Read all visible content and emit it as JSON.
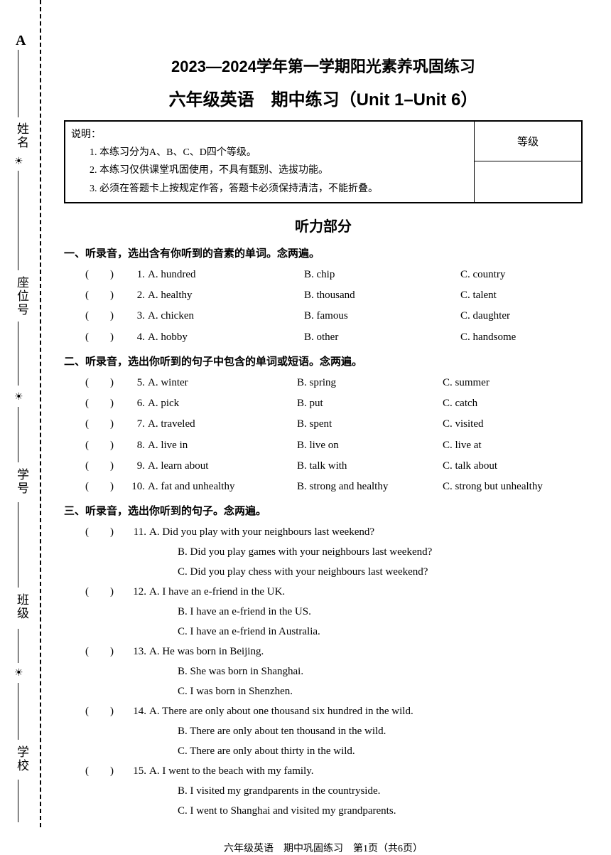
{
  "cornerA": "A",
  "sideLabels": [
    "姓名",
    "座位号",
    "学号",
    "班级",
    "学校"
  ],
  "title1": "2023—2024学年第一学期阳光素养巩固练习",
  "title2": "六年级英语　期中练习（Unit 1–Unit 6）",
  "infoHeader": "说明：",
  "infoItems": [
    "1. 本练习分为A、B、C、D四个等级。",
    "2. 本练习仅供课堂巩固使用，不具有甄别、选拔功能。",
    "3. 必须在答题卡上按规定作答，答题卡必须保持清洁，不能折叠。"
  ],
  "gradeLabel": "等级",
  "listeningTitle": "听力部分",
  "sec1": {
    "head": "一、听录音，选出含有你听到的音素的单词。念两遍。",
    "items": [
      {
        "n": "1.",
        "a": "A. hundred",
        "b": "B. chip",
        "c": "C. country"
      },
      {
        "n": "2.",
        "a": "A. healthy",
        "b": "B. thousand",
        "c": "C. talent"
      },
      {
        "n": "3.",
        "a": "A. chicken",
        "b": "B. famous",
        "c": "C. daughter"
      },
      {
        "n": "4.",
        "a": "A. hobby",
        "b": "B. other",
        "c": "C. handsome"
      }
    ]
  },
  "sec2": {
    "head": "二、听录音，选出你听到的句子中包含的单词或短语。念两遍。",
    "items": [
      {
        "n": "5.",
        "a": "A. winter",
        "b": "B. spring",
        "c": "C. summer"
      },
      {
        "n": "6.",
        "a": "A. pick",
        "b": "B. put",
        "c": "C. catch"
      },
      {
        "n": "7.",
        "a": "A. traveled",
        "b": "B. spent",
        "c": "C. visited"
      },
      {
        "n": "8.",
        "a": "A. live in",
        "b": "B. live on",
        "c": "C. live at"
      },
      {
        "n": "9.",
        "a": "A. learn about",
        "b": "B. talk with",
        "c": "C. talk about"
      },
      {
        "n": "10.",
        "a": "A. fat and unhealthy",
        "b": "B. strong and healthy",
        "c": "C. strong but unhealthy"
      }
    ]
  },
  "sec3": {
    "head": "三、听录音，选出你听到的句子。念两遍。",
    "items": [
      {
        "n": "11.",
        "a": "A. Did you play with your neighbours last weekend?",
        "b": "B. Did you play games with your neighbours last weekend?",
        "c": "C. Did you play chess with your neighbours last weekend?"
      },
      {
        "n": "12.",
        "a": "A. I have an e-friend in the UK.",
        "b": "B. I have an e-friend in the US.",
        "c": "C. I have an e-friend in Australia."
      },
      {
        "n": "13.",
        "a": "A. He was born in Beijing.",
        "b": "B. She was born in Shanghai.",
        "c": "C. I was born in Shenzhen."
      },
      {
        "n": "14.",
        "a": "A. There are only about one thousand six hundred in the wild.",
        "b": "B. There are only about ten thousand in the wild.",
        "c": "C. There are only about thirty in the wild."
      },
      {
        "n": "15.",
        "a": "A. I went to the beach with my family.",
        "b": "B. I visited my grandparents in the countryside.",
        "c": "C. I went to Shanghai and visited my grandparents."
      }
    ]
  },
  "footer": "六年级英语　期中巩固练习　第1页（共6页）",
  "bracket": "(　　)"
}
